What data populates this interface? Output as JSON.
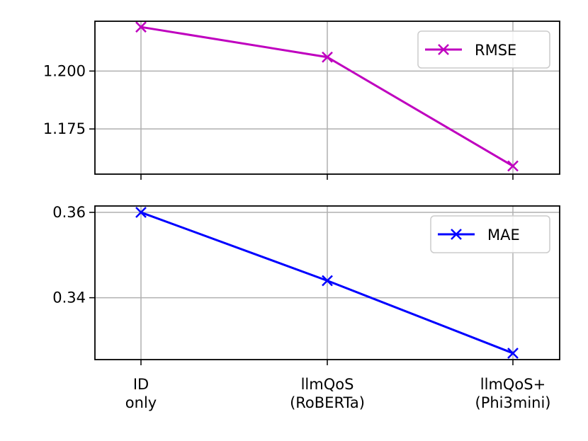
{
  "chart_data": [
    {
      "type": "line",
      "categories": [
        "ID\nonly",
        "llmQoS\n(RoBERTa)",
        "llmQoS+\n(Phi3mini)"
      ],
      "series": [
        {
          "name": "RMSE",
          "values": [
            1.219,
            1.206,
            1.159
          ],
          "color": "#bf00bf",
          "marker": "x"
        }
      ],
      "yticks": [
        "1.175",
        "1.200"
      ],
      "ylim": [
        1.1555,
        1.2215
      ],
      "grid": true,
      "legend": "top-right"
    },
    {
      "type": "line",
      "categories": [
        "ID\nonly",
        "llmQoS\n(RoBERTa)",
        "llmQoS+\n(Phi3mini)"
      ],
      "series": [
        {
          "name": "MAE",
          "values": [
            0.36,
            0.344,
            0.327
          ],
          "color": "#0000ff",
          "marker": "x"
        }
      ],
      "yticks": [
        "0.34",
        "0.36"
      ],
      "ylim": [
        0.3255,
        0.3615
      ],
      "grid": true,
      "legend": "top-right"
    }
  ]
}
